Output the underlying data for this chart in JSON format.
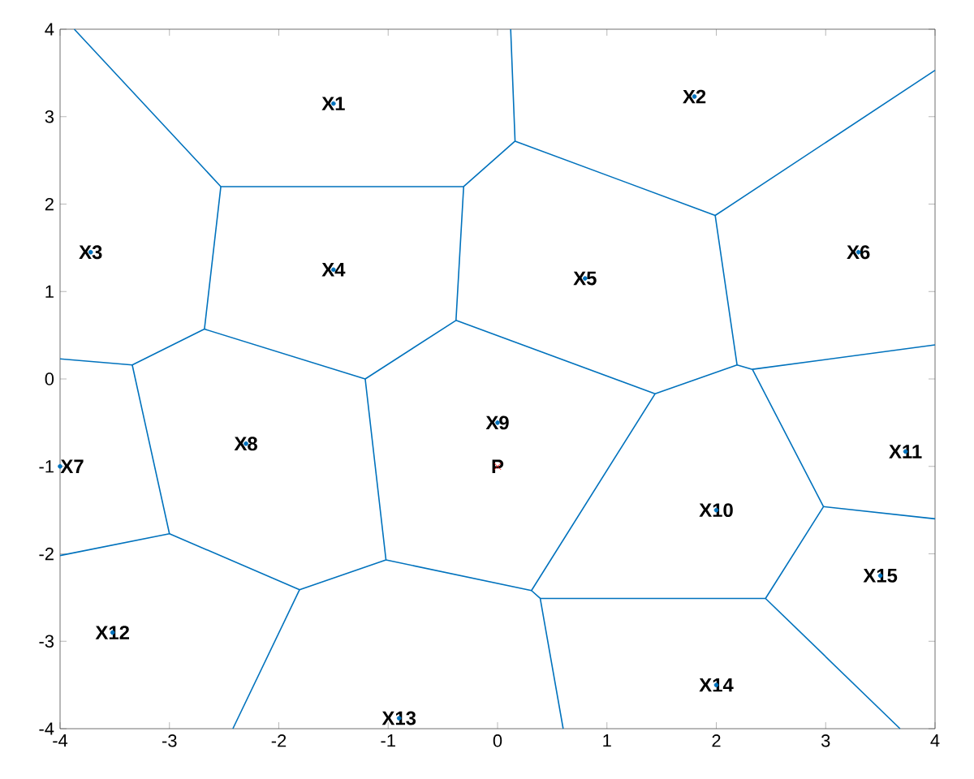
{
  "chart_data": {
    "type": "line",
    "xlim": [
      -4,
      4
    ],
    "ylim": [
      -4,
      4
    ],
    "xticks": [
      -4,
      -3,
      -2,
      -1,
      0,
      1,
      2,
      3,
      4
    ],
    "yticks": [
      -4,
      -3,
      -2,
      -1,
      0,
      1,
      2,
      3,
      4
    ],
    "grid": false,
    "marker": "none",
    "line_style": "solid",
    "series": [
      {
        "color": "#0072bd",
        "x": [
          -3.87,
          -2.53,
          -0.31,
          0.16,
          0.12
        ],
        "values": [
          4,
          2.2,
          2.2,
          2.72,
          4
        ]
      },
      {
        "color": "#0072bd",
        "x": [
          0.16,
          1.99,
          4
        ],
        "values": [
          2.72,
          1.87,
          3.53
        ]
      },
      {
        "color": "#0072bd",
        "x": [
          1.99,
          2.19,
          1.44,
          -0.38,
          -0.31
        ],
        "values": [
          1.87,
          0.16,
          -0.17,
          0.67,
          2.2
        ]
      },
      {
        "color": "#0072bd",
        "x": [
          -2.53,
          -2.68,
          -3.34,
          -4
        ],
        "values": [
          2.2,
          0.57,
          0.16,
          0.23
        ]
      },
      {
        "color": "#0072bd",
        "x": [
          -2.68,
          -1.21,
          -0.38
        ],
        "values": [
          0.57,
          0.0,
          0.67
        ]
      },
      {
        "color": "#0072bd",
        "x": [
          -3.34,
          -3.0,
          -4
        ],
        "values": [
          0.16,
          -1.77,
          -2.02
        ]
      },
      {
        "color": "#0072bd",
        "x": [
          -3.0,
          -1.81,
          -1.02,
          -1.21
        ],
        "values": [
          -1.77,
          -2.41,
          -2.07,
          0.0
        ]
      },
      {
        "color": "#0072bd",
        "x": [
          -1.81,
          -2.42
        ],
        "values": [
          -2.41,
          -4
        ]
      },
      {
        "color": "#0072bd",
        "x": [
          -1.02,
          0.31,
          1.44
        ],
        "values": [
          -2.07,
          -2.42,
          -0.17
        ]
      },
      {
        "color": "#0072bd",
        "x": [
          0.31,
          0.39,
          0.6
        ],
        "values": [
          -2.42,
          -2.51,
          -4
        ]
      },
      {
        "color": "#0072bd",
        "x": [
          0.39,
          2.45,
          2.98,
          2.33,
          2.19
        ],
        "values": [
          -2.51,
          -2.51,
          -1.46,
          0.11,
          0.16
        ]
      },
      {
        "color": "#0072bd",
        "x": [
          2.33,
          4
        ],
        "values": [
          0.11,
          0.39
        ]
      },
      {
        "color": "#0072bd",
        "x": [
          2.98,
          4
        ],
        "values": [
          -1.46,
          -1.6
        ]
      },
      {
        "color": "#0072bd",
        "x": [
          2.45,
          3.68
        ],
        "values": [
          -2.51,
          -4
        ]
      },
      {
        "type": "scatter",
        "marker": "circle",
        "color": "#0072bd",
        "x": [
          -1.5,
          1.8,
          -3.72,
          -1.5,
          0.8,
          3.3,
          -4.0,
          -2.3,
          0.0,
          2.0,
          3.73,
          -3.52,
          -0.9,
          2.0,
          3.5
        ],
        "values": [
          3.15,
          3.23,
          1.45,
          1.25,
          1.15,
          1.45,
          -1.0,
          -0.74,
          -0.5,
          -1.5,
          -0.83,
          -2.9,
          -3.88,
          -3.5,
          -2.25
        ]
      },
      {
        "type": "scatter",
        "marker": "cross",
        "color": "#ff0000",
        "x": [
          0.0
        ],
        "values": [
          -1.0
        ]
      }
    ],
    "annotations": [
      {
        "text": "X1",
        "x": -1.5,
        "y": 3.15
      },
      {
        "text": "X2",
        "x": 1.8,
        "y": 3.23
      },
      {
        "text": "X3",
        "x": -3.72,
        "y": 1.45
      },
      {
        "text": "X4",
        "x": -1.5,
        "y": 1.25
      },
      {
        "text": "X5",
        "x": 0.8,
        "y": 1.15
      },
      {
        "text": "X6",
        "x": 3.3,
        "y": 1.45
      },
      {
        "text": "X7",
        "x": -4.0,
        "y": -1.0
      },
      {
        "text": "X8",
        "x": -2.3,
        "y": -0.74
      },
      {
        "text": "X9",
        "x": 0.0,
        "y": -0.5
      },
      {
        "text": "X10",
        "x": 2.0,
        "y": -1.5
      },
      {
        "text": "X11",
        "x": 3.73,
        "y": -0.83
      },
      {
        "text": "X12",
        "x": -3.52,
        "y": -2.9
      },
      {
        "text": "X13",
        "x": -0.9,
        "y": -3.88
      },
      {
        "text": "X14",
        "x": 2.0,
        "y": -3.5
      },
      {
        "text": "X15",
        "x": 3.5,
        "y": -2.25
      },
      {
        "text": "P",
        "x": 0.0,
        "y": -1.0
      }
    ]
  }
}
